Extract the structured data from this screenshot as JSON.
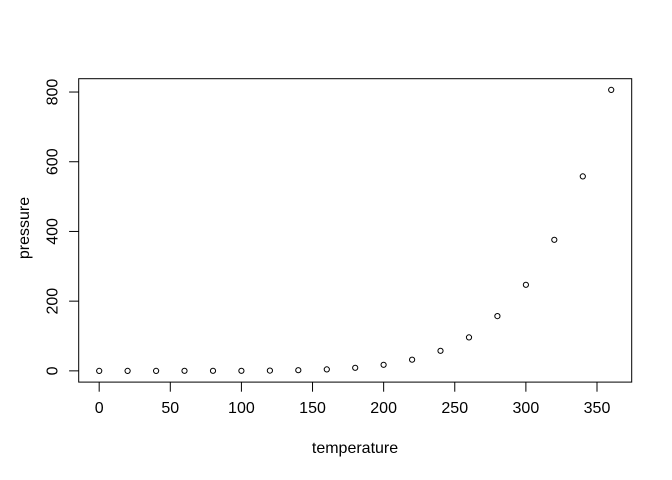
{
  "chart_data": {
    "type": "scatter",
    "title": "",
    "xlabel": "temperature",
    "ylabel": "pressure",
    "x": [
      0,
      20,
      40,
      60,
      80,
      100,
      120,
      140,
      160,
      180,
      200,
      220,
      240,
      260,
      280,
      300,
      320,
      340,
      360
    ],
    "y": [
      0.0002,
      0.0012,
      0.006,
      0.03,
      0.09,
      0.27,
      0.75,
      1.85,
      4.2,
      8.8,
      17.3,
      32.1,
      57.5,
      96,
      157,
      247,
      376,
      558,
      806
    ],
    "x_ticks": [
      0,
      50,
      100,
      150,
      200,
      250,
      300,
      350
    ],
    "y_ticks": [
      0,
      200,
      400,
      600,
      800
    ],
    "xlim": [
      -14.4,
      374.4
    ],
    "ylim": [
      -32.25,
      838.25
    ],
    "point_style": "open-circle",
    "grid": "off",
    "legend": "none",
    "foreground_color": "#000000",
    "background_color": "#ffffff"
  }
}
